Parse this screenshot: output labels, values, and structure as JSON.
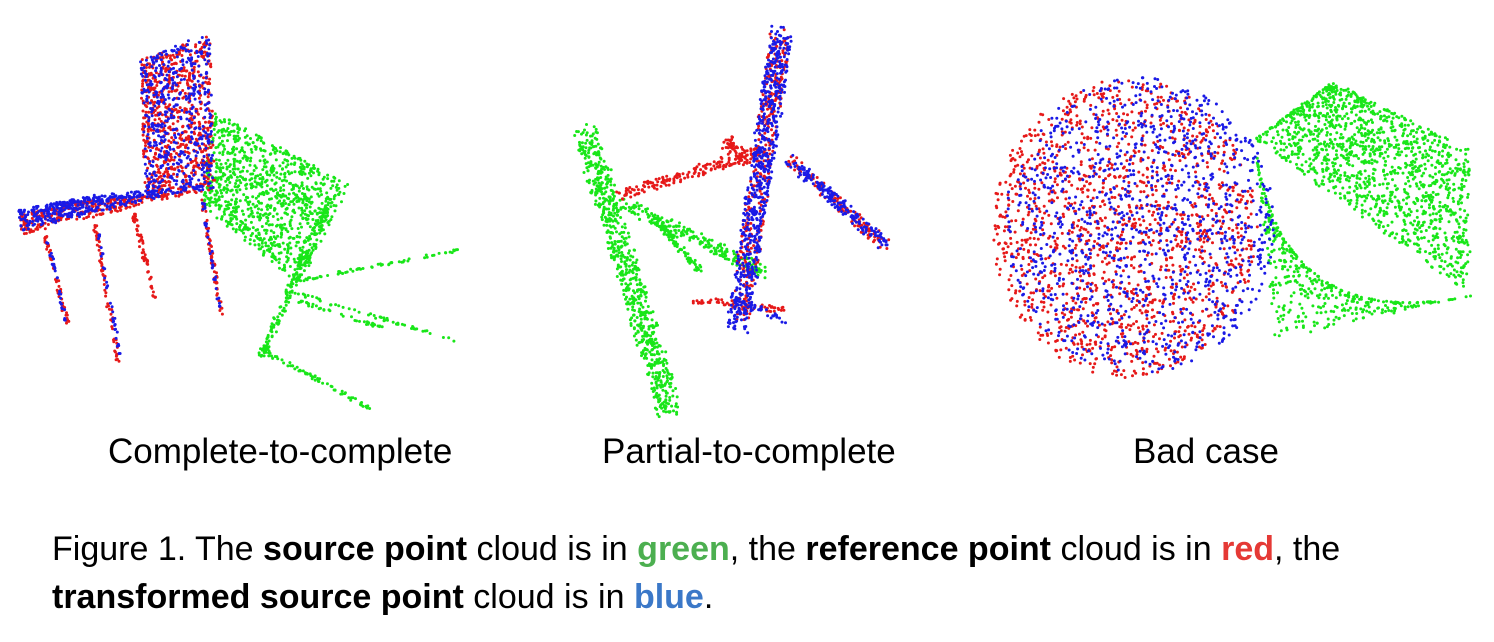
{
  "colors": {
    "source": "#19e619",
    "reference": "#e61919",
    "transformed": "#1a1ae6",
    "caption_green": "#4caf50",
    "caption_red": "#e53935",
    "caption_blue": "#3b78c8"
  },
  "panels": [
    {
      "label": "Complete-to-complete",
      "object": "chair"
    },
    {
      "label": "Partial-to-complete",
      "object": "airplane"
    },
    {
      "label": "Bad case",
      "object": "sphere-and-box"
    }
  ],
  "caption": {
    "prefix": "Figure 1. The ",
    "source_term": "source point",
    "t1": " cloud is in ",
    "green_word": "green",
    "t2": ", the ",
    "reference_term": "reference point",
    "t3": " cloud is in ",
    "red_word": "red",
    "t4": ", the",
    "transformed_term": "transformed source point",
    "t5": " cloud is in ",
    "blue_word": "blue",
    "t6": "."
  }
}
